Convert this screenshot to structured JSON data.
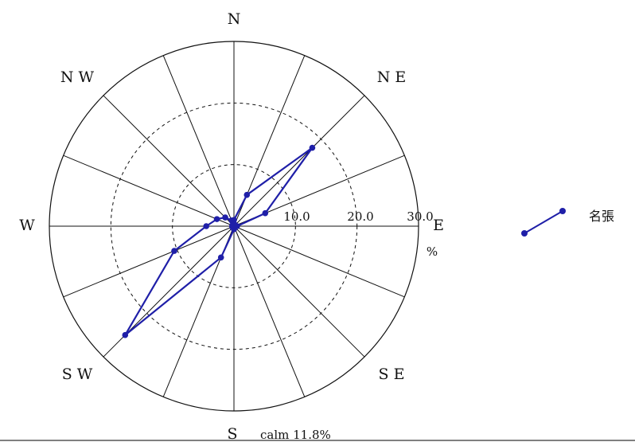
{
  "chart_data": {
    "type": "wind_rose",
    "directions": [
      "N",
      "NNE",
      "NE",
      "ENE",
      "E",
      "ESE",
      "SE",
      "SSE",
      "S",
      "SSW",
      "SW",
      "WSW",
      "W",
      "WNW",
      "NW",
      "NNW"
    ],
    "direction_labels": {
      "N": "N",
      "NE": "N E",
      "E": "E",
      "SE": "S E",
      "S": "S",
      "SW": "S W",
      "W": "W",
      "NW": "N W"
    },
    "rings": [
      10.0,
      20.0,
      30.0
    ],
    "tick_labels": [
      "10.0",
      "20.0",
      "30.0"
    ],
    "unit": "%",
    "rmax": 30.0,
    "calm_text": "calm 11.8%",
    "series": [
      {
        "name": "名張",
        "color": "#1f1fa8",
        "values": [
          1.0,
          5.5,
          18.0,
          5.5,
          0.5,
          0.0,
          0.0,
          0.0,
          0.5,
          5.5,
          25.0,
          10.5,
          4.5,
          3.0,
          2.0,
          1.0
        ]
      }
    ]
  }
}
